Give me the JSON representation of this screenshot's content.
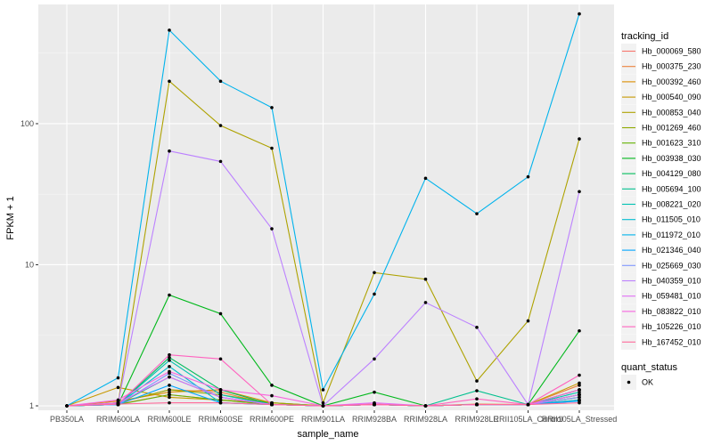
{
  "chart_data": {
    "type": "line",
    "title": "",
    "xlabel": "sample_name",
    "ylabel": "FPKM + 1",
    "y_scale": "log10",
    "ylim": [
      0.93,
      700
    ],
    "y_ticks": [
      1,
      10,
      100
    ],
    "y_tick_labels": [
      "1",
      "10",
      "100"
    ],
    "categories": [
      "PB350LA",
      "RRIM600LA",
      "RRIM600LE",
      "RRIM600SE",
      "RRIM600PE",
      "RRIM901LA",
      "RRIM928BA",
      "RRIM928LA",
      "RRIM928LE",
      "RRII105LA_Control",
      "RRII105LA_Stressed"
    ],
    "grid": true,
    "legend": {
      "title": "tracking_id",
      "position": "right",
      "entries": [
        "Hb_000069_580",
        "Hb_000375_230",
        "Hb_000392_460",
        "Hb_000540_090",
        "Hb_000853_040",
        "Hb_001269_460",
        "Hb_001623_310",
        "Hb_003938_030",
        "Hb_004129_080",
        "Hb_005694_100",
        "Hb_008221_020",
        "Hb_011505_010",
        "Hb_011972_010",
        "Hb_021346_040",
        "Hb_025669_030",
        "Hb_040359_010",
        "Hb_059481_010",
        "Hb_083822_010",
        "Hb_105226_010",
        "Hb_167452_010"
      ]
    },
    "legend2": {
      "title": "quant_status",
      "entries": [
        "OK"
      ]
    },
    "series": [
      {
        "name": "Hb_000069_580",
        "color": "#F8766D",
        "values": [
          1,
          1.03,
          1.2,
          1.1,
          1.05,
          1,
          1.02,
          1,
          1.02,
          1.02,
          1.1
        ]
      },
      {
        "name": "Hb_000375_230",
        "color": "#EC823C",
        "values": [
          1,
          1.05,
          1.3,
          1.25,
          1.02,
          1,
          1.02,
          1,
          1.03,
          1.02,
          1.4
        ]
      },
      {
        "name": "Hb_000392_460",
        "color": "#DC8E00",
        "values": [
          1,
          1.08,
          1.25,
          1.3,
          1.05,
          1,
          1.03,
          1,
          1.02,
          1.02,
          1.3
        ]
      },
      {
        "name": "Hb_000540_090",
        "color": "#C79800",
        "values": [
          1,
          1.35,
          1.15,
          1.1,
          1.02,
          1,
          1.02,
          1,
          1.02,
          1.02,
          1.45
        ]
      },
      {
        "name": "Hb_000853_040",
        "color": "#AEA200",
        "values": [
          1,
          1.05,
          200,
          97,
          67,
          1.05,
          8.8,
          7.9,
          1.5,
          4,
          78
        ]
      },
      {
        "name": "Hb_001269_460",
        "color": "#8FAA00",
        "values": [
          1,
          1.05,
          1.3,
          1.2,
          1.05,
          1,
          1.02,
          1,
          1.02,
          1.02,
          1.2
        ]
      },
      {
        "name": "Hb_001623_310",
        "color": "#64B200",
        "values": [
          1,
          1.02,
          1.2,
          1.1,
          1.02,
          1,
          1.02,
          1,
          1.02,
          1.02,
          1.15
        ]
      },
      {
        "name": "Hb_003938_030",
        "color": "#00B81B",
        "values": [
          1,
          1.02,
          6.1,
          4.5,
          1.4,
          1,
          1.25,
          1,
          1.02,
          1.02,
          3.4
        ]
      },
      {
        "name": "Hb_004129_080",
        "color": "#00BD5C",
        "values": [
          1,
          1.02,
          2.2,
          1.3,
          1.02,
          1,
          1.02,
          1,
          1.02,
          1.02,
          1.3
        ]
      },
      {
        "name": "Hb_005694_100",
        "color": "#00C08E",
        "values": [
          1,
          1.03,
          1.6,
          1.15,
          1.02,
          1,
          1.02,
          1,
          1.28,
          1.02,
          1.2
        ]
      },
      {
        "name": "Hb_008221_020",
        "color": "#00C1B2",
        "values": [
          1,
          1.02,
          2.1,
          1.2,
          1.02,
          1,
          1.02,
          1,
          1.02,
          1.02,
          1.25
        ]
      },
      {
        "name": "Hb_011505_010",
        "color": "#00BCD1",
        "values": [
          1,
          1.02,
          1.9,
          1.05,
          1.02,
          1,
          1.02,
          1,
          1.02,
          1.02,
          1.1
        ]
      },
      {
        "name": "Hb_011972_010",
        "color": "#00B3EC",
        "values": [
          1,
          1.58,
          460,
          200,
          130,
          1.3,
          6.2,
          41,
          23,
          42,
          600
        ]
      },
      {
        "name": "Hb_021346_040",
        "color": "#00A5FF",
        "values": [
          1,
          1.02,
          1.4,
          1.05,
          1.02,
          1,
          1.02,
          1,
          1.02,
          1.02,
          1.08
        ]
      },
      {
        "name": "Hb_025669_030",
        "color": "#7F96FF",
        "values": [
          1,
          1.02,
          1.7,
          1.15,
          1.02,
          1,
          1.02,
          1,
          1.02,
          1.02,
          1.15
        ]
      },
      {
        "name": "Hb_040359_010",
        "color": "#BC81FF",
        "values": [
          1,
          1.05,
          64,
          54,
          18,
          1,
          2.15,
          5.4,
          3.6,
          1.02,
          33
        ]
      },
      {
        "name": "Hb_059481_010",
        "color": "#E26EF7",
        "values": [
          1,
          1.05,
          1.6,
          1.15,
          1.02,
          1,
          1.05,
          1,
          1.02,
          1.02,
          1.2
        ]
      },
      {
        "name": "Hb_083822_010",
        "color": "#F863DF",
        "values": [
          1,
          1.1,
          1.75,
          1.3,
          1.18,
          1,
          1.03,
          1,
          1.02,
          1.02,
          1.3
        ]
      },
      {
        "name": "Hb_105226_010",
        "color": "#FF62BF",
        "values": [
          1,
          1.03,
          2.3,
          2.15,
          1.02,
          1,
          1.02,
          1,
          1.12,
          1.02,
          1.65
        ]
      },
      {
        "name": "Hb_167452_010",
        "color": "#FF6A9A",
        "values": [
          1,
          1.03,
          1.05,
          1.05,
          1.02,
          1,
          1.02,
          1,
          1.02,
          1.02,
          1.05
        ]
      }
    ]
  }
}
